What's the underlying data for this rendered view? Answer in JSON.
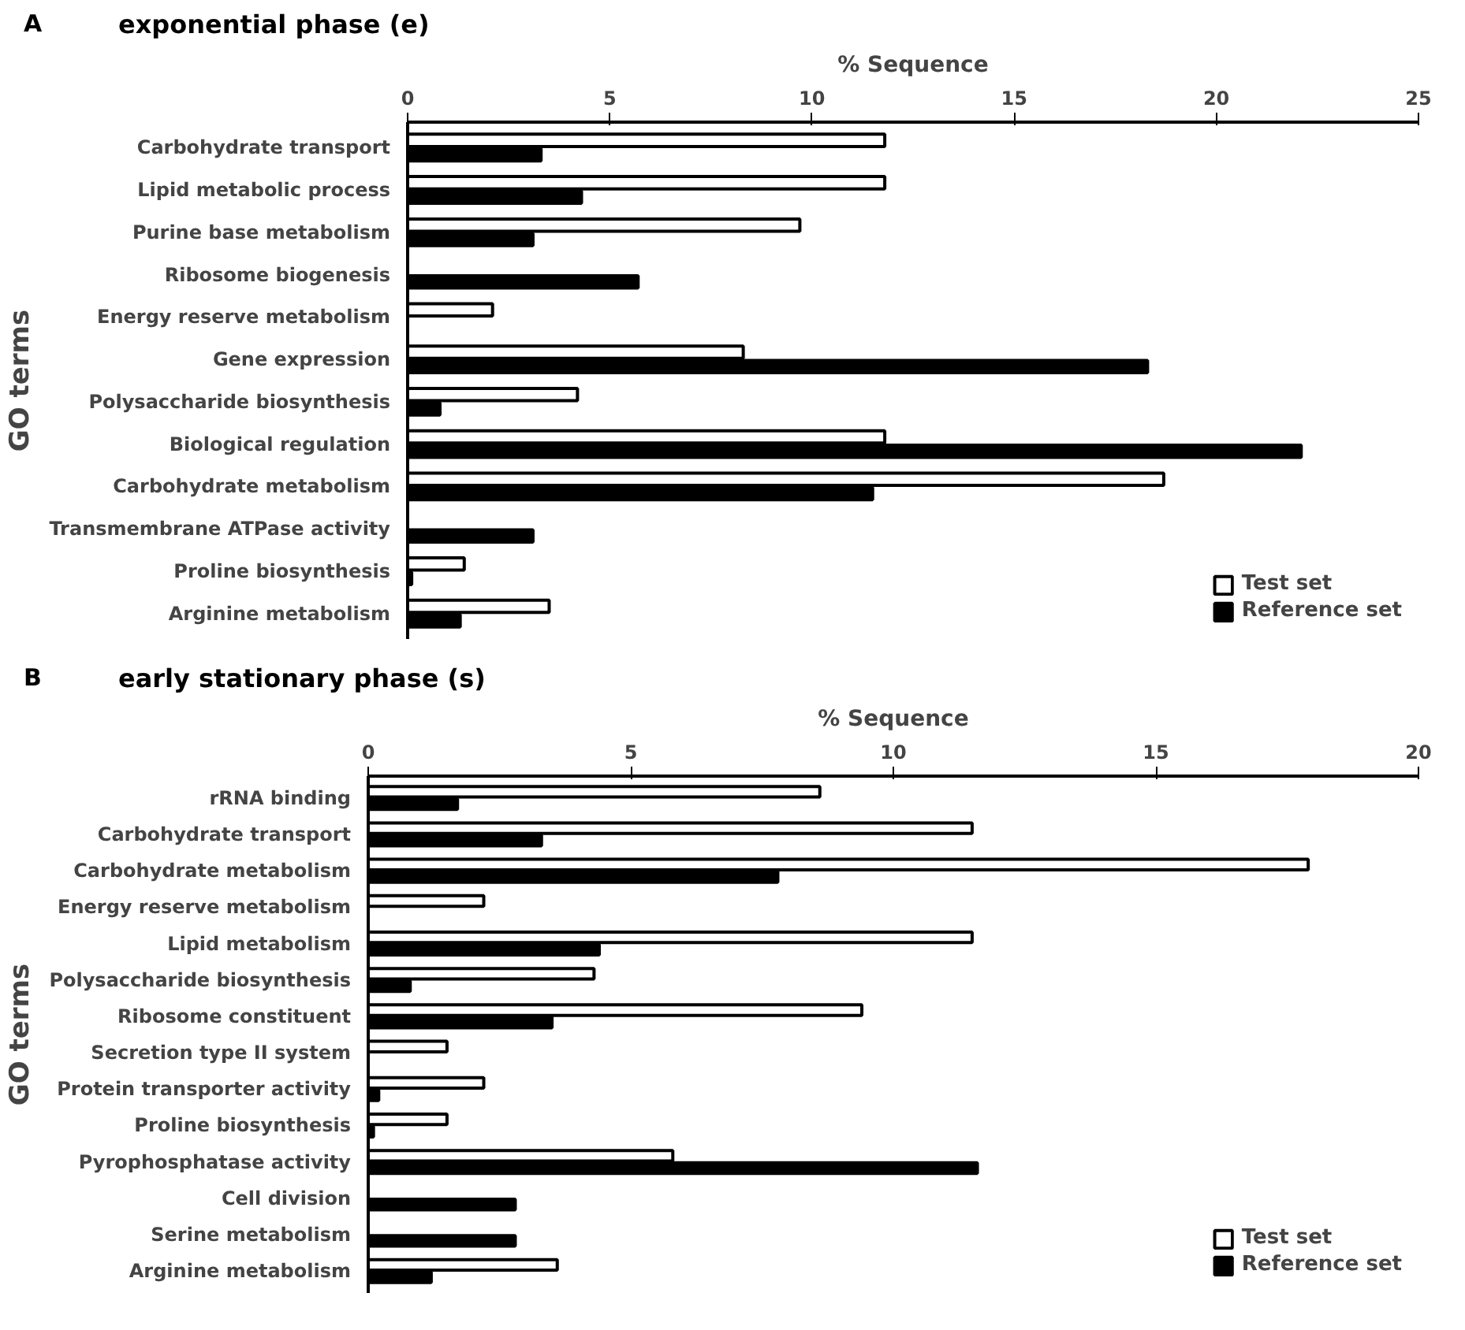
{
  "chart_data": [
    {
      "type": "bar",
      "orientation": "horizontal",
      "title": "exponential phase (e)",
      "annotations": [
        "A"
      ],
      "xlabel": "% Sequence",
      "ylabel": "GO terms",
      "categories": [
        "Carbohydrate transport",
        "Lipid metabolic process",
        "Purine base metabolism",
        "Ribosome biogenesis",
        "Energy reserve metabolism",
        "Gene expression",
        "Polysaccharide biosynthesis",
        "Biological regulation",
        "Carbohydrate metabolism",
        "Transmembrane ATPase activity",
        "Proline biosynthesis",
        "Arginine metabolism"
      ],
      "series": [
        {
          "name": "Test set",
          "color": "#ffffff",
          "values": [
            11.8,
            11.8,
            9.7,
            null,
            2.1,
            8.3,
            4.2,
            11.8,
            18.7,
            null,
            1.4,
            3.5
          ]
        },
        {
          "name": "Reference set",
          "color": "#000000",
          "values": [
            3.3,
            4.3,
            3.1,
            5.7,
            null,
            18.3,
            0.8,
            22.1,
            11.5,
            3.1,
            0.1,
            1.3
          ]
        }
      ],
      "xlim": [
        0,
        25
      ],
      "xticks": [
        0,
        5,
        10,
        15,
        20,
        25
      ],
      "grid": false,
      "legend": "bottom right"
    },
    {
      "type": "bar",
      "orientation": "horizontal",
      "title": "early stationary phase  (s)",
      "annotations": [
        "B"
      ],
      "xlabel": "% Sequence",
      "ylabel": "GO terms",
      "categories": [
        "rRNA binding",
        "Carbohydrate transport",
        "Carbohydrate metabolism",
        "Energy reserve metabolism",
        "Lipid metabolism",
        "Polysaccharide biosynthesis",
        "Ribosome constituent",
        "Secretion type II system",
        "Protein transporter activity",
        "Proline biosynthesis",
        "Pyrophosphatase activity",
        "Cell division",
        "Serine metabolism",
        "Arginine metabolism"
      ],
      "series": [
        {
          "name": "Test set",
          "color": "#ffffff",
          "values": [
            8.6,
            11.5,
            17.9,
            2.2,
            11.5,
            4.3,
            9.4,
            1.5,
            2.2,
            1.5,
            5.8,
            null,
            null,
            3.6
          ]
        },
        {
          "name": "Reference set",
          "color": "#000000",
          "values": [
            1.7,
            3.3,
            7.8,
            null,
            4.4,
            0.8,
            3.5,
            null,
            0.2,
            0.1,
            11.6,
            2.8,
            2.8,
            1.2
          ]
        }
      ],
      "xlim": [
        0,
        20
      ],
      "xticks": [
        0,
        5,
        10,
        15,
        20
      ],
      "grid": false,
      "legend": "bottom right"
    }
  ]
}
